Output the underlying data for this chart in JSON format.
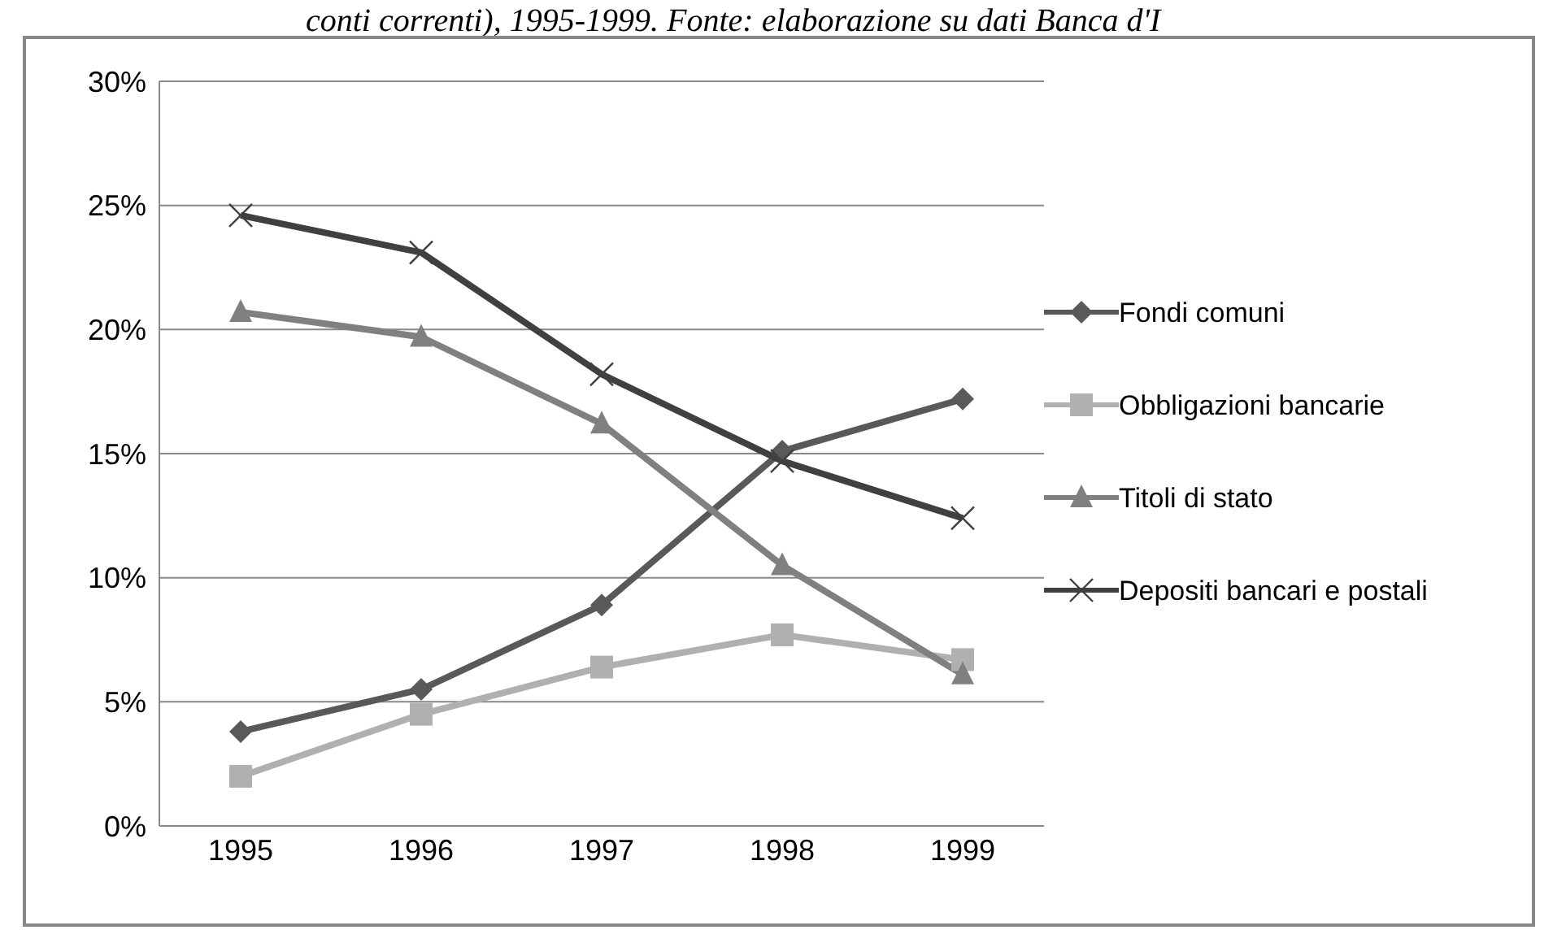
{
  "chart_data": {
    "type": "line",
    "annotations": [
      "conti correnti), 1995-1999. Fonte: elaborazione su dati Banca d'I"
    ],
    "categories": [
      "1995",
      "1996",
      "1997",
      "1998",
      "1999"
    ],
    "series": [
      {
        "name": "Fondi comuni",
        "color": "#595959",
        "marker": "diamond",
        "values": [
          3.8,
          5.5,
          8.9,
          15.1,
          17.2
        ]
      },
      {
        "name": "Obbligazioni bancarie",
        "color": "#b0b0b0",
        "marker": "square",
        "values": [
          2.0,
          4.5,
          6.4,
          7.7,
          6.7
        ]
      },
      {
        "name": "Titoli di stato",
        "color": "#808080",
        "marker": "triangle",
        "values": [
          20.7,
          19.7,
          16.2,
          10.5,
          6.1
        ]
      },
      {
        "name": "Depositi bancari e postali",
        "color": "#404040",
        "marker": "cross",
        "values": [
          24.6,
          23.1,
          18.2,
          14.7,
          12.4
        ]
      }
    ],
    "ylim": [
      0,
      30
    ],
    "yticks": [
      {
        "value": 0,
        "label": "0%"
      },
      {
        "value": 5,
        "label": "5%"
      },
      {
        "value": 10,
        "label": "10%"
      },
      {
        "value": 15,
        "label": "15%"
      },
      {
        "value": 20,
        "label": "20%"
      },
      {
        "value": 25,
        "label": "25%"
      },
      {
        "value": 30,
        "label": "30%"
      }
    ],
    "grid": "y",
    "legend": "right",
    "line_style": "solid"
  }
}
